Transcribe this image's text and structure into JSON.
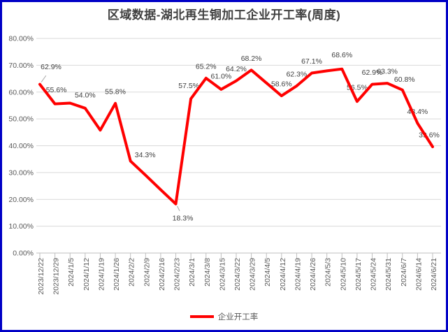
{
  "window": {
    "border_color": "#0000C6",
    "background": "#FFFFFF"
  },
  "chart_data": {
    "type": "line",
    "title": "区域数据-湖北再生铜加工企业开工率(周度)",
    "xlabel": "",
    "ylabel": "",
    "ylim": [
      0,
      80
    ],
    "ytick_step": 10,
    "ytick_labels": [
      "0.00%",
      "10.00%",
      "20.00%",
      "30.00%",
      "40.00%",
      "50.00%",
      "60.00%",
      "70.00%",
      "80.00%"
    ],
    "grid": true,
    "x_categories": [
      "2023/12/22",
      "2023/12/29",
      "2024/1/5",
      "2024/1/12",
      "2024/1/19",
      "2024/1/26",
      "2024/2/2",
      "2024/2/9",
      "2024/2/16",
      "2024/2/23",
      "2024/3/1",
      "2024/3/8",
      "2024/3/15",
      "2024/3/22",
      "2024/3/29",
      "2024/4/5",
      "2024/4/12",
      "2024/4/19",
      "2024/4/26",
      "2024/5/3",
      "2024/5/10",
      "2024/5/17",
      "2024/5/24",
      "2024/5/31",
      "2024/6/7",
      "2024/6/14",
      "2024/6/21"
    ],
    "series": [
      {
        "name": "企业开工率",
        "color": "#FF0000",
        "values": [
          62.9,
          55.6,
          55.9,
          54.0,
          45.8,
          55.8,
          34.3,
          29.0,
          23.6,
          18.3,
          57.5,
          65.2,
          61.0,
          64.2,
          68.2,
          63.4,
          58.6,
          62.3,
          67.1,
          67.9,
          68.6,
          56.5,
          62.9,
          63.3,
          60.8,
          48.4,
          39.6
        ],
        "point_labels": [
          "62.9%",
          "55.6%",
          null,
          "54.0%",
          null,
          "55.8%",
          "34.3%",
          null,
          null,
          "18.3%",
          "57.5%",
          "65.2%",
          "61.0%",
          "64.2%",
          "68.2%",
          null,
          "58.6%",
          "62.3%",
          "67.1%",
          null,
          "68.6%",
          "56.5%",
          "62.9%",
          "63.3%",
          "60.8%",
          "48.4%",
          "39.6%"
        ]
      }
    ],
    "legend": {
      "position": "bottom",
      "entries": [
        {
          "label": "企业开工率",
          "color": "#FF0000"
        }
      ]
    },
    "colors": {
      "gridline": "#D9D9D9",
      "axis": "#BFBFBF",
      "axis_labels": "#595959",
      "data_labels": "#404040",
      "leader_line": "#A6A6A6",
      "title": "#3F3F3F"
    },
    "label_hints": {
      "0": {
        "dx": 16,
        "dy": -25,
        "leader": true
      },
      "1": {
        "dx": 2,
        "dy": -20
      },
      "3": {
        "dy": -19
      },
      "6": {
        "dx": 21,
        "dy": -9
      },
      "9": {
        "dx": 10,
        "dy": 20,
        "leader": true
      },
      "10": {
        "dx": -3,
        "dy": -19
      },
      "12": {
        "dy": -19
      },
      "20": {
        "dy": -20
      },
      "21": {
        "dy": -20
      },
      "24": {
        "dx": 3,
        "dy": -15
      },
      "26": {
        "dx": -5
      }
    }
  }
}
